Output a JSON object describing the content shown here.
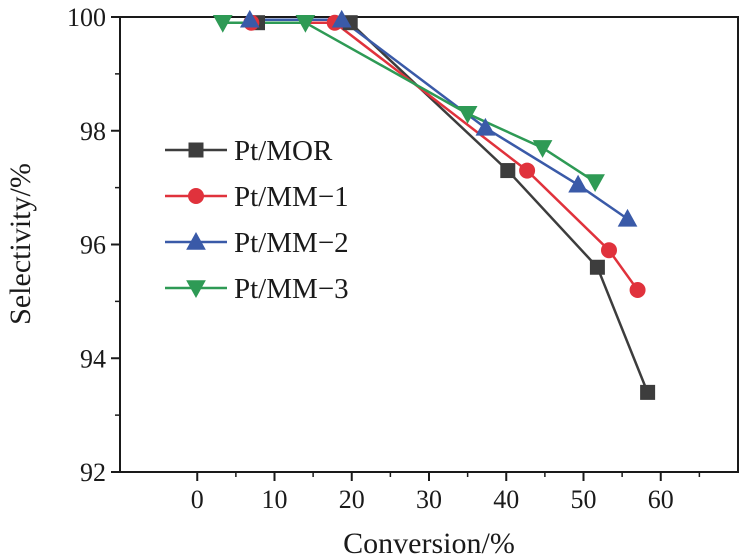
{
  "chart_data": {
    "type": "line",
    "title": "",
    "xlabel": "Conversion/%",
    "ylabel": "Selectivity/%",
    "xlim": [
      -10,
      70
    ],
    "ylim": [
      92,
      100
    ],
    "xticks": [
      "0",
      "10",
      "20",
      "30",
      "40",
      "50",
      "60"
    ],
    "yticks": [
      "92",
      "94",
      "96",
      "98",
      "100"
    ],
    "grid": false,
    "legend_position": "left-center",
    "series": [
      {
        "name": "Pt/MOR",
        "color": "#3d3d3d",
        "marker": "square",
        "x": [
          7.8,
          19.8,
          40.2,
          51.8,
          58.3
        ],
        "y": [
          99.9,
          99.9,
          97.3,
          95.6,
          93.4
        ]
      },
      {
        "name": "Pt/MM−1",
        "color": "#e0323c",
        "marker": "circle",
        "x": [
          7.0,
          17.8,
          42.7,
          53.3,
          57.0
        ],
        "y": [
          99.9,
          99.9,
          97.3,
          95.9,
          95.2
        ]
      },
      {
        "name": "Pt/MM−2",
        "color": "#3a5aa8",
        "marker": "triangle-up",
        "x": [
          6.8,
          18.7,
          37.3,
          49.3,
          55.7
        ],
        "y": [
          99.95,
          99.95,
          98.05,
          97.05,
          96.45
        ]
      },
      {
        "name": "Pt/MM−3",
        "color": "#2e9a55",
        "marker": "triangle-down",
        "x": [
          3.3,
          14.0,
          35.0,
          44.7,
          51.5
        ],
        "y": [
          99.9,
          99.9,
          98.3,
          97.7,
          97.1
        ]
      }
    ]
  }
}
